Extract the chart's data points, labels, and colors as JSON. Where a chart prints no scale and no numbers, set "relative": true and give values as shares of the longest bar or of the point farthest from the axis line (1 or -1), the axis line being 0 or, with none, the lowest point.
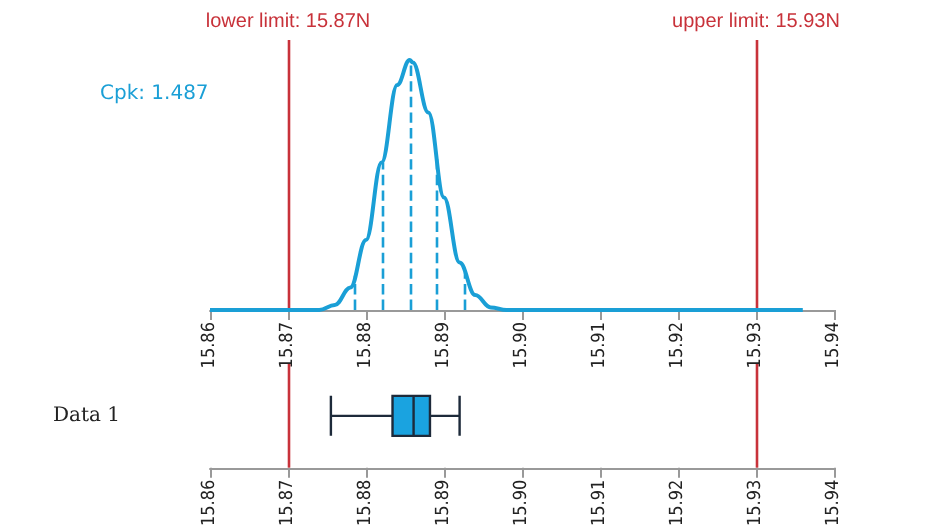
{
  "chart_data": [
    {
      "type": "line",
      "relative": true,
      "marker": "none",
      "line_style": "solid",
      "series": [
        {
          "color": "#1a9fd6",
          "x": [
            15.86,
            15.87,
            15.874,
            15.876,
            15.878,
            15.88,
            15.882,
            15.884,
            15.8856,
            15.886,
            15.888,
            15.89,
            15.892,
            15.894,
            15.896,
            15.898,
            15.91,
            15.92,
            15.936
          ],
          "values": [
            0,
            0,
            0,
            0.02,
            0.09,
            0.28,
            0.59,
            0.9,
            1,
            0.99,
            0.79,
            0.45,
            0.19,
            0.06,
            0.01,
            0,
            0,
            0,
            0
          ]
        }
      ],
      "xlim": [
        15.86,
        15.94
      ],
      "xticks": [
        15.86,
        15.87,
        15.88,
        15.89,
        {
          "value": 15.9,
          "label": "15.90"
        },
        15.91,
        15.92,
        15.93,
        15.94
      ],
      "ref_lines": [
        {
          "axis": "x",
          "value": 15.87,
          "label": "lower limit: 15.87N",
          "color": "#c8323a",
          "line_style": "solid"
        },
        {
          "axis": "x",
          "value": 15.93,
          "label": "upper limit: 15.93N",
          "color": "#c8323a",
          "line_style": "solid"
        },
        {
          "axis": "x",
          "value": 15.8785,
          "color": "#1a9fd6",
          "line_style": "dashed"
        },
        {
          "axis": "x",
          "value": 15.882,
          "color": "#1a9fd6",
          "line_style": "dashed"
        },
        {
          "axis": "x",
          "value": 15.8856,
          "color": "#1a9fd6",
          "line_style": "dashed"
        },
        {
          "axis": "x",
          "value": 15.889,
          "color": "#1a9fd6",
          "line_style": "dashed"
        },
        {
          "axis": "x",
          "value": 15.8926,
          "color": "#1a9fd6",
          "line_style": "dashed"
        }
      ],
      "annotations": [
        "Cpk: 1.487"
      ]
    },
    {
      "type": "box",
      "orientation": "horizontal",
      "categories": [
        "Data 1"
      ],
      "series": [
        {
          "color": "#1aa3e0",
          "boxes": [
            {
              "low": 15.8755,
              "q1": 15.8834,
              "median": 15.8861,
              "q3": 15.8882,
              "high": 15.892
            }
          ]
        }
      ],
      "xlim": [
        15.86,
        15.94
      ],
      "xticks": [
        15.86,
        15.87,
        15.88,
        15.89,
        {
          "value": 15.9,
          "label": "15.90"
        },
        15.91,
        15.92,
        15.93,
        15.94
      ],
      "ref_lines": [
        {
          "axis": "x",
          "value": 15.87,
          "color": "#c8323a",
          "line_style": "solid"
        },
        {
          "axis": "x",
          "value": 15.93,
          "color": "#c8323a",
          "line_style": "solid"
        }
      ]
    }
  ]
}
